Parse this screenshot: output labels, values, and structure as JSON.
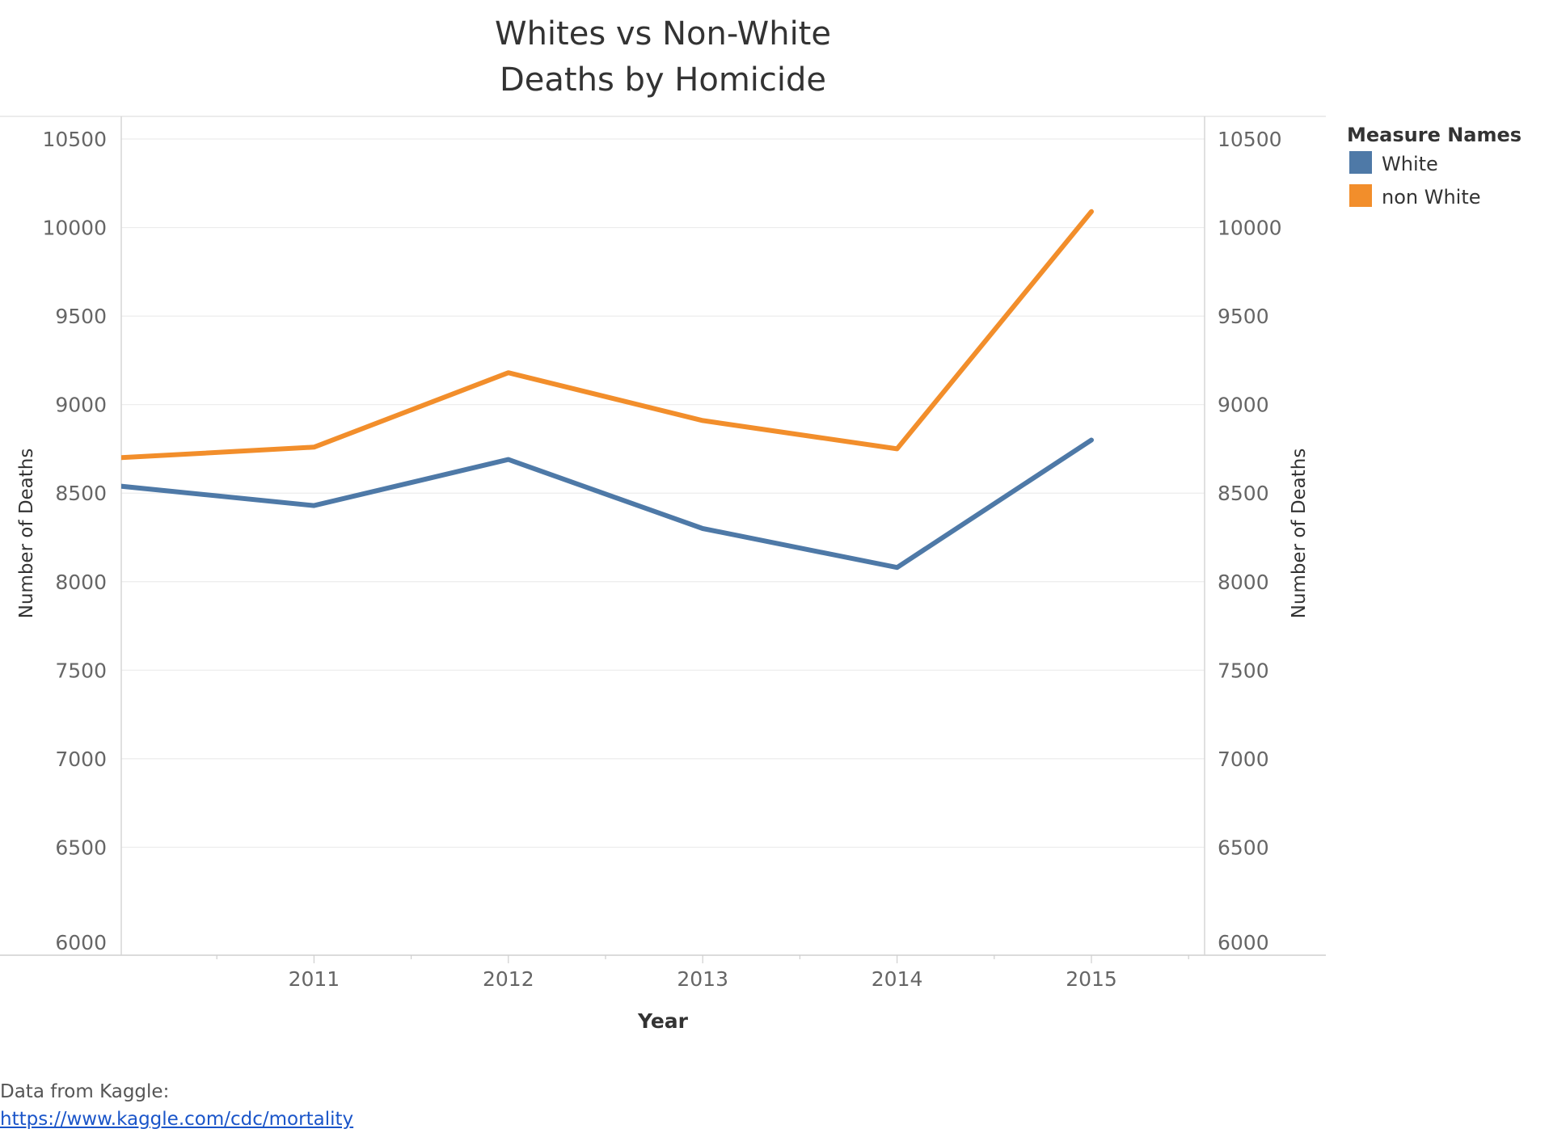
{
  "chart_data": {
    "type": "line",
    "title": [
      "Whites vs Non-White",
      "Deaths by Homicide"
    ],
    "xlabel": "Year",
    "ylabel": "Number of Deaths",
    "ylabel_right": "Number of Deaths",
    "x": [
      2010,
      2011,
      2012,
      2013,
      2014,
      2015
    ],
    "x_tick_labels": [
      "2011",
      "2012",
      "2013",
      "2014",
      "2015"
    ],
    "ylim": [
      6000,
      10500
    ],
    "y_ticks": [
      "10500",
      "10000",
      "9500",
      "9000",
      "8500",
      "8000",
      "7500",
      "7000",
      "6500",
      "6000"
    ],
    "legend_title": "Measure Names",
    "legend_position": "top-right",
    "grid": true,
    "series": [
      {
        "name": "White",
        "color": "#4e79a7",
        "values": [
          8540,
          8430,
          8690,
          8300,
          8080,
          8800
        ]
      },
      {
        "name": "non White",
        "color": "#f28e2b",
        "values": [
          8700,
          8760,
          9180,
          8910,
          8750,
          10090
        ]
      }
    ]
  },
  "source": {
    "label": "Data from Kaggle:",
    "link": "https://www.kaggle.com/cdc/mortality"
  }
}
